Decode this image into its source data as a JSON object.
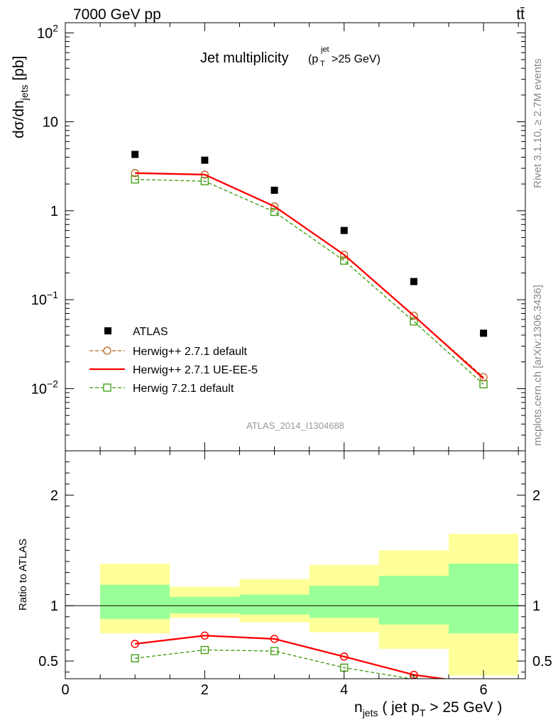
{
  "header": {
    "beam_label": "7000 GeV pp",
    "process_label": "tt̄"
  },
  "side": {
    "rivet_label": "Rivet 3.1.10, ≥ 2.7M events",
    "source_label": "mcplots.cern.ch [arXiv:1306.3436]"
  },
  "analysis_id": "ATLAS_2014_I1304688",
  "colors": {
    "atlas": "#000000",
    "herwigpp_default": "#b5651d",
    "herwigpp_ueee5": "#ff0000",
    "herwig721": "#3a9a0a",
    "band_inner": "#99ff99",
    "band_outer": "#ffff99"
  },
  "chart_data": [
    {
      "type": "scatter",
      "panel": "main",
      "title_main": "Jet multiplicity",
      "title_cut": "(p_T^jet >25 GeV)",
      "ylabel": "dσ/dn_jets [pb]",
      "yscale": "log",
      "ylim": [
        0.002,
        130
      ],
      "xlim": [
        0,
        6.6
      ],
      "y_ticks": [
        {
          "value": 100,
          "label": "10^2"
        },
        {
          "value": 10,
          "label": "10"
        },
        {
          "value": 1,
          "label": "1"
        },
        {
          "value": 0.1,
          "label": "10^-1"
        },
        {
          "value": 0.01,
          "label": "10^-2"
        }
      ],
      "legend_position": "lower-left",
      "x": [
        1,
        2,
        3,
        4,
        5,
        6
      ],
      "series": [
        {
          "name": "ATLAS",
          "key": "atlas",
          "values": [
            4.3,
            3.7,
            1.7,
            0.6,
            0.16,
            0.042
          ]
        },
        {
          "name": "Herwig++ 2.7.1 default",
          "key": "herwigpp_default",
          "values": [
            2.65,
            2.55,
            1.12,
            0.32,
            0.066,
            0.0135
          ]
        },
        {
          "name": "Herwig++ 2.7.1 UE-EE-5",
          "key": "herwigpp_ueee5",
          "values": [
            2.65,
            2.55,
            1.12,
            0.32,
            0.066,
            0.013
          ]
        },
        {
          "name": "Herwig 7.2.1 default",
          "key": "herwig721",
          "values": [
            2.25,
            2.15,
            0.97,
            0.275,
            0.057,
            0.0112
          ]
        }
      ]
    },
    {
      "type": "line",
      "panel": "ratio",
      "ylabel": "Ratio to ATLAS",
      "xlabel": "n_jets ( jet p_T > 25 GeV )",
      "xlim": [
        0,
        6.6
      ],
      "ylim": [
        0.34,
        2.4
      ],
      "x_ticks": [
        0,
        2,
        4,
        6
      ],
      "y_ticks": [
        0.5,
        1,
        2
      ],
      "x": [
        1,
        2,
        3,
        4,
        5,
        6
      ],
      "bins": [
        [
          0.5,
          1.5
        ],
        [
          1.5,
          2.5
        ],
        [
          2.5,
          3.5
        ],
        [
          3.5,
          4.5
        ],
        [
          4.5,
          5.5
        ],
        [
          5.5,
          6.5
        ]
      ],
      "band_inner": [
        [
          0.88,
          1.19
        ],
        [
          0.93,
          1.08
        ],
        [
          0.92,
          1.1
        ],
        [
          0.89,
          1.18
        ],
        [
          0.83,
          1.27
        ],
        [
          0.75,
          1.38
        ]
      ],
      "band_outer": [
        [
          0.75,
          1.38
        ],
        [
          0.89,
          1.17
        ],
        [
          0.85,
          1.24
        ],
        [
          0.76,
          1.37
        ],
        [
          0.61,
          1.5
        ],
        [
          0.37,
          1.65
        ]
      ],
      "series": [
        {
          "name": "Herwig++ 2.7.1 default",
          "key": "herwigpp_default",
          "values": [
            0.655,
            0.73,
            0.7,
            0.54,
            0.375,
            0.29
          ]
        },
        {
          "name": "Herwig++ 2.7.1 UE-EE-5",
          "key": "herwigpp_ueee5",
          "values": [
            0.655,
            0.73,
            0.7,
            0.54,
            0.375,
            0.29
          ]
        },
        {
          "name": "Herwig 7.2.1 default",
          "key": "herwig721",
          "values": [
            0.525,
            0.6,
            0.59,
            0.44,
            0.335,
            0.26
          ]
        }
      ]
    }
  ]
}
